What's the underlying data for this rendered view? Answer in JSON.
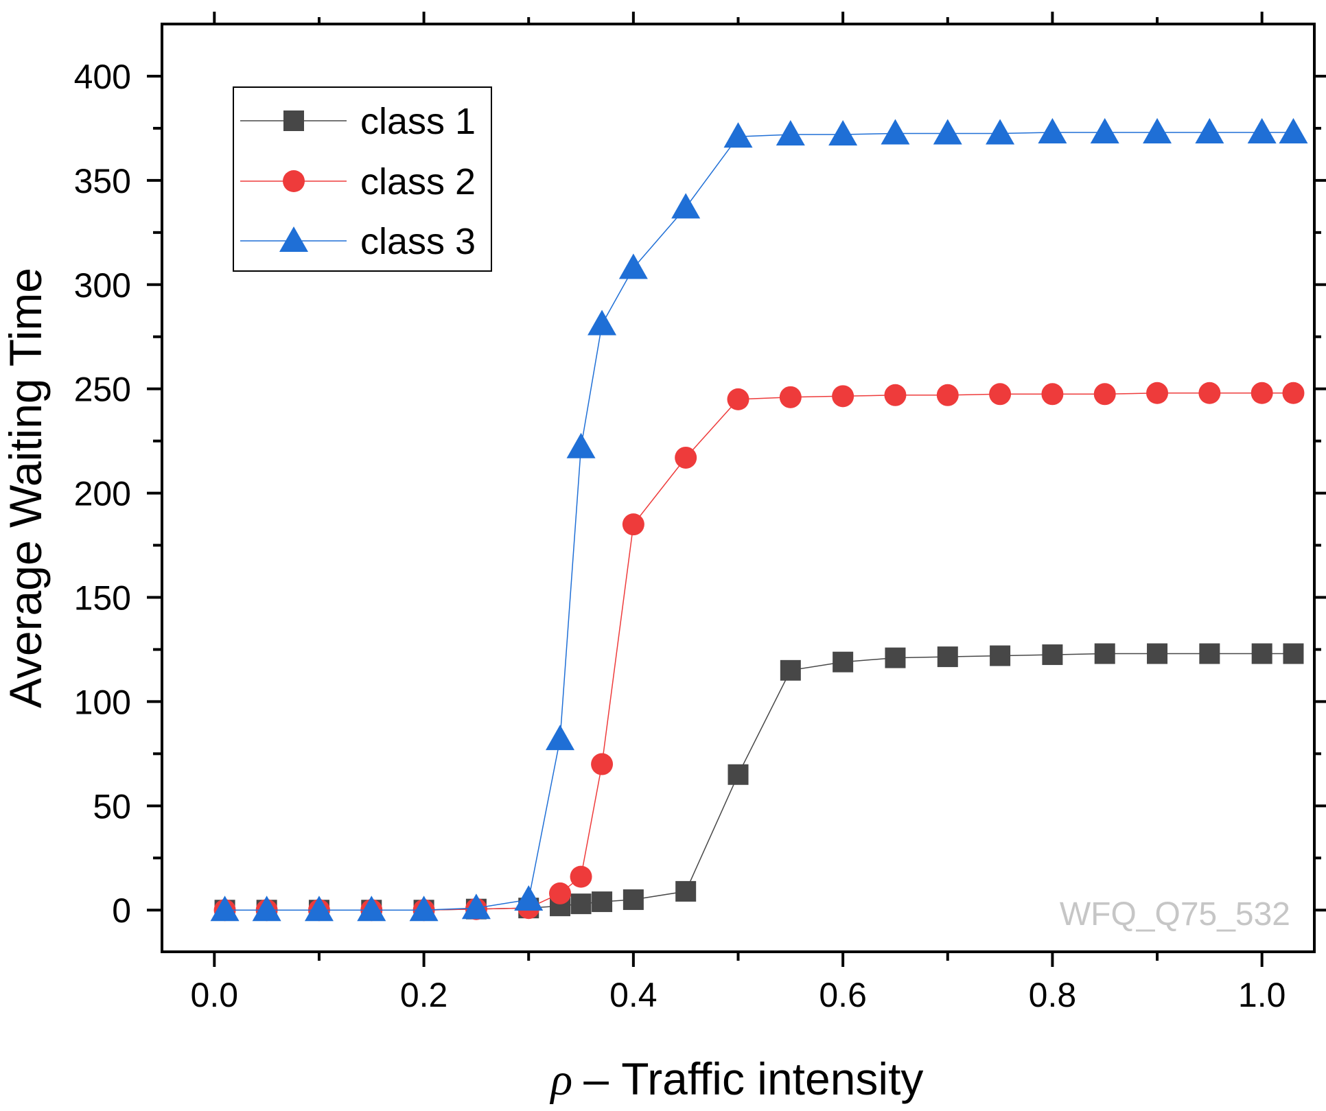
{
  "chart_data": {
    "type": "line",
    "title": "",
    "xlabel": "ρ – Traffic intensity",
    "xlabel_symbol": "ρ",
    "xlabel_rest": "– Traffic intensity",
    "ylabel": "Average Waiting Time",
    "xlim": [
      -0.05,
      1.05
    ],
    "ylim": [
      -20,
      425
    ],
    "xticks": [
      0.0,
      0.2,
      0.4,
      0.6,
      0.8,
      1.0
    ],
    "xtick_labels": [
      "0.0",
      "0.2",
      "0.4",
      "0.6",
      "0.8",
      "1.0"
    ],
    "yticks": [
      0,
      50,
      100,
      150,
      200,
      250,
      300,
      350,
      400
    ],
    "ytick_labels": [
      "0",
      "50",
      "100",
      "150",
      "200",
      "250",
      "300",
      "350",
      "400"
    ],
    "grid": false,
    "legend_position": "top-left",
    "watermark": "WFQ_Q75_532",
    "series": [
      {
        "name": "class 1",
        "color": "#474747",
        "marker": "square",
        "x": [
          0.01,
          0.05,
          0.1,
          0.15,
          0.2,
          0.25,
          0.3,
          0.33,
          0.35,
          0.37,
          0.4,
          0.45,
          0.5,
          0.55,
          0.6,
          0.65,
          0.7,
          0.75,
          0.8,
          0.85,
          0.9,
          0.95,
          1.0,
          1.03
        ],
        "values": [
          0,
          0,
          0,
          0,
          0,
          0.5,
          1,
          2,
          3,
          4,
          5,
          9,
          65,
          115,
          119,
          121,
          121.5,
          122,
          122.5,
          123,
          123,
          123,
          123,
          123
        ]
      },
      {
        "name": "class 2",
        "color": "#ee3b3b",
        "marker": "circle",
        "x": [
          0.01,
          0.05,
          0.1,
          0.15,
          0.2,
          0.25,
          0.3,
          0.33,
          0.35,
          0.37,
          0.4,
          0.45,
          0.5,
          0.55,
          0.6,
          0.65,
          0.7,
          0.75,
          0.8,
          0.85,
          0.9,
          0.95,
          1.0,
          1.03
        ],
        "values": [
          0,
          0,
          0,
          0,
          0,
          0.5,
          1,
          8,
          16,
          70,
          185,
          217,
          245,
          246,
          246.5,
          247,
          247,
          247.5,
          247.5,
          247.5,
          248,
          248,
          248,
          248
        ]
      },
      {
        "name": "class 3",
        "color": "#1f6fd6",
        "marker": "triangle",
        "x": [
          0.01,
          0.05,
          0.1,
          0.15,
          0.2,
          0.25,
          0.3,
          0.33,
          0.35,
          0.37,
          0.4,
          0.45,
          0.5,
          0.55,
          0.6,
          0.65,
          0.7,
          0.75,
          0.8,
          0.85,
          0.9,
          0.95,
          1.0,
          1.03
        ],
        "values": [
          0,
          0,
          0,
          0,
          0,
          1,
          5,
          82,
          222,
          281,
          308,
          337,
          371,
          372,
          372,
          372.5,
          372.5,
          372.5,
          373,
          373,
          373,
          373,
          373,
          373
        ]
      }
    ]
  }
}
